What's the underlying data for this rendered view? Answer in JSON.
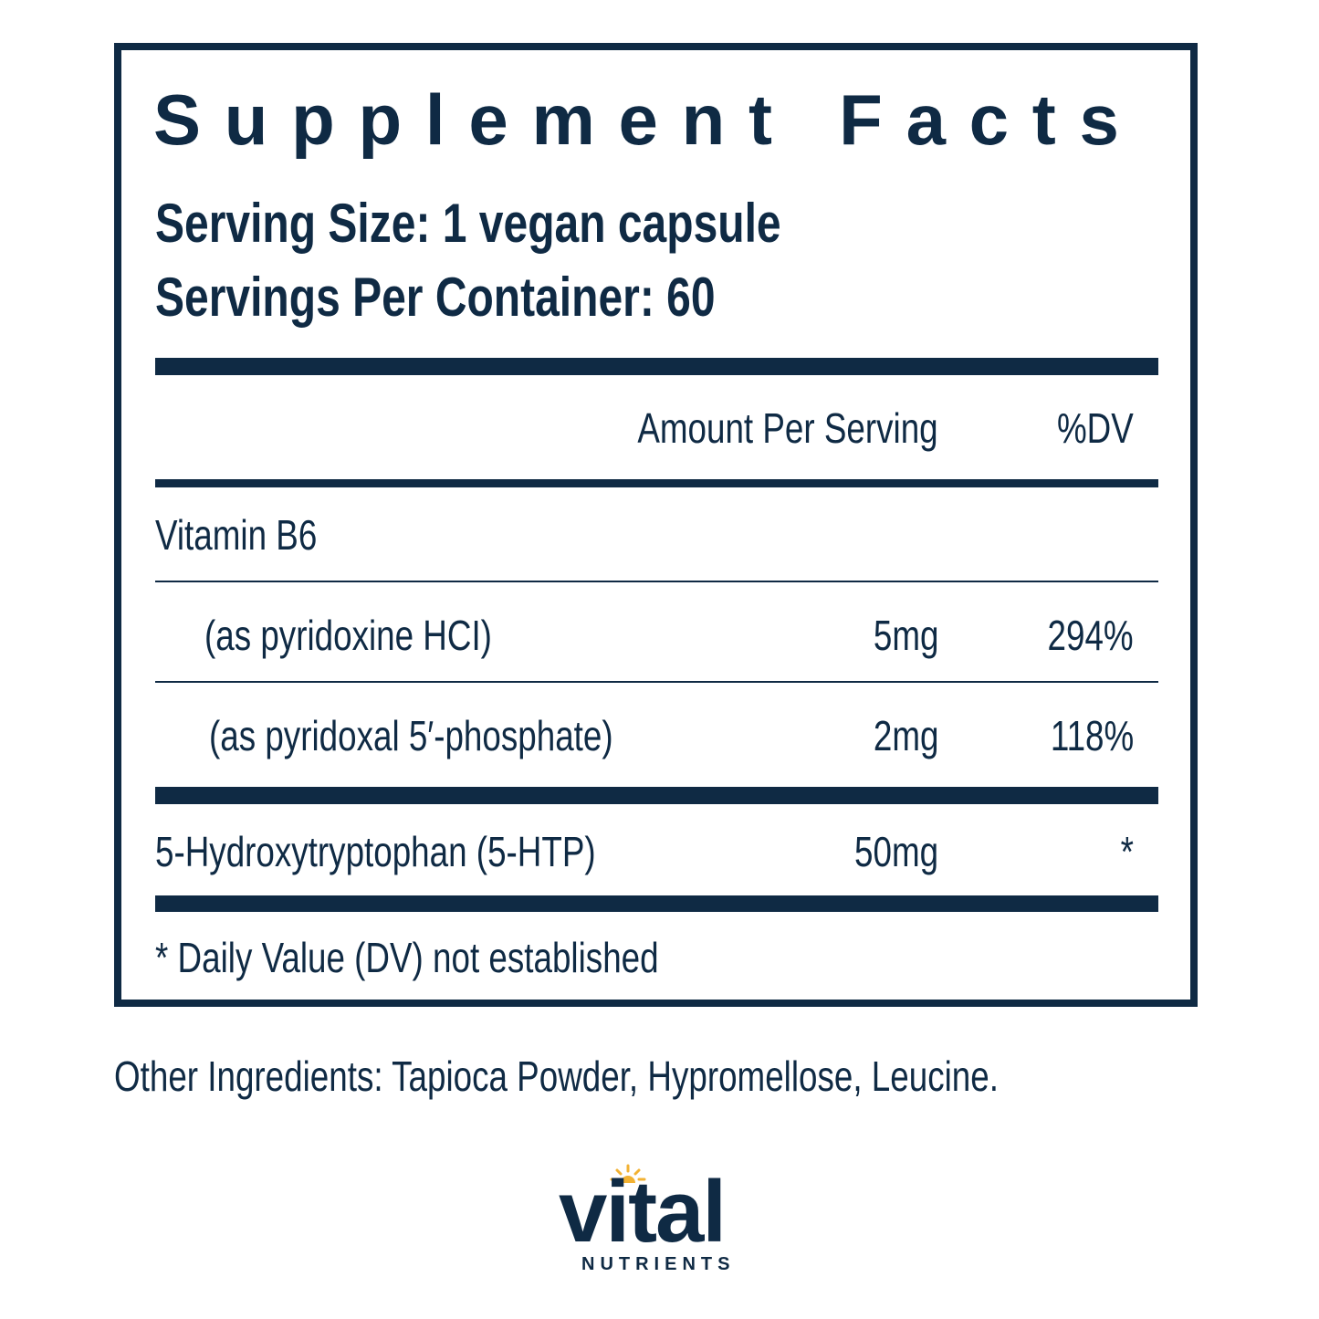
{
  "label": {
    "title": "Supplement Facts",
    "serving_size": "Serving Size: 1 vegan capsule",
    "servings_per_container": "Servings Per Container: 60",
    "table": {
      "header": {
        "amount": "Amount Per Serving",
        "dv": "%DV"
      },
      "rows": [
        {
          "name": "Vitamin B6"
        },
        {
          "name": "(as pyridoxine HCI)",
          "amount": "5mg",
          "dv": "294%"
        },
        {
          "name": "(as pyridoxal 5′-phosphate)",
          "amount": "2mg",
          "dv": "118%"
        },
        {
          "name": "5-Hydroxytryptophan (5-HTP)",
          "amount": "50mg",
          "dv": "*"
        }
      ]
    },
    "footnote": "* Daily Value (DV) not established"
  },
  "other_ingredients": "Other Ingredients: Tapioca Powder, Hypromellose, Leucine.",
  "brand": {
    "name": "vital",
    "tagline": "NUTRIENTS"
  }
}
